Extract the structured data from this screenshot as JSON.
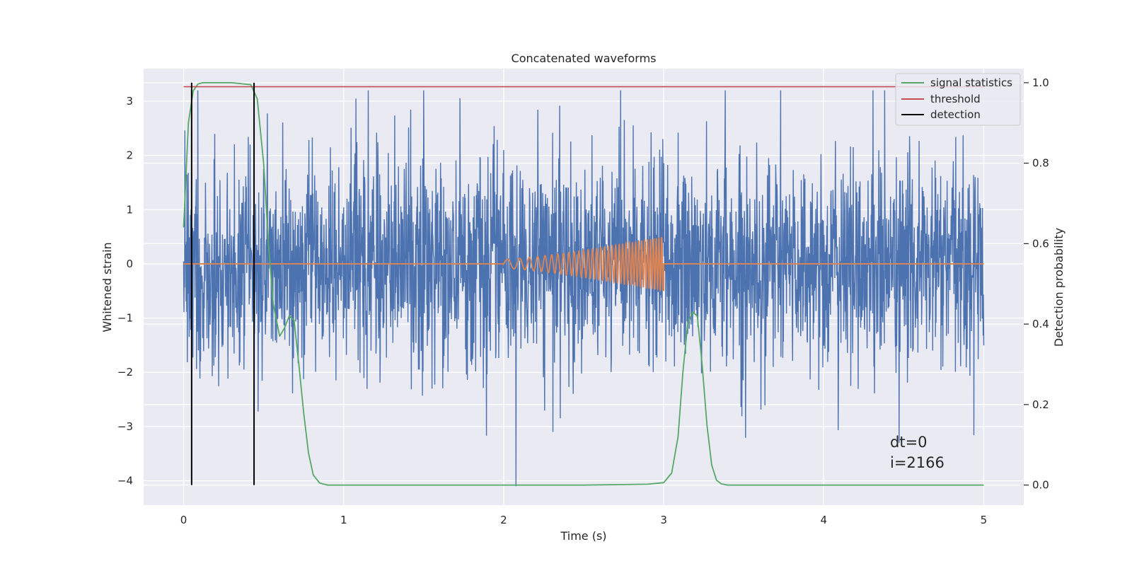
{
  "chart_data": {
    "type": "line",
    "title": "Concatenated waveforms",
    "xlabel": "Time (s)",
    "ylabel": "Whitened strain",
    "ylabel_right": "Detection probability",
    "xlim": [
      -0.25,
      5.25
    ],
    "ylim": [
      -4.45,
      3.6
    ],
    "ylim_right": [
      -0.05,
      1.035
    ],
    "xticks": [
      0,
      1,
      2,
      3,
      4,
      5
    ],
    "xtick_labels": [
      "0",
      "1",
      "2",
      "3",
      "4",
      "5"
    ],
    "yticks": [
      -4,
      -3,
      -2,
      -1,
      0,
      1,
      2,
      3
    ],
    "ytick_labels": [
      "−4",
      "−3",
      "−2",
      "−1",
      "0",
      "1",
      "2",
      "3"
    ],
    "yticks_right": [
      0.0,
      0.2,
      0.4,
      0.6,
      0.8,
      1.0
    ],
    "ytick_labels_right": [
      "0.0",
      "0.2",
      "0.4",
      "0.6",
      "0.8",
      "1.0"
    ],
    "grid": true,
    "legend_position": "top-right",
    "legend": [
      {
        "label": "signal statistics",
        "color": "#55a868"
      },
      {
        "label": "threshold",
        "color": "#c44e52"
      },
      {
        "label": "detection",
        "color": "#000000"
      }
    ],
    "series": [
      {
        "kind": "whitened-noise",
        "axis": "left",
        "color": "#4c72b0",
        "x_range": [
          0,
          5
        ],
        "approx_range": [
          -4.1,
          3.2
        ]
      },
      {
        "kind": "chirp-template",
        "axis": "left",
        "color": "#dd8452",
        "x": [
          0,
          2,
          3,
          3.0,
          5
        ],
        "amplitude_end": 0.5,
        "frequency_start_hz": 10,
        "frequency_end_hz": 60
      },
      {
        "name": "signal statistics",
        "axis": "right",
        "color": "#55a868",
        "x": [
          0.0,
          0.03,
          0.06,
          0.09,
          0.12,
          0.2,
          0.3,
          0.42,
          0.46,
          0.5,
          0.53,
          0.56,
          0.6,
          0.63,
          0.66,
          0.69,
          0.72,
          0.75,
          0.78,
          0.81,
          0.85,
          0.9,
          1.5,
          2.0,
          2.5,
          2.9,
          3.0,
          3.05,
          3.09,
          3.12,
          3.15,
          3.18,
          3.21,
          3.24,
          3.27,
          3.3,
          3.33,
          3.36,
          3.4,
          3.5,
          5.0
        ],
        "y": [
          0.64,
          0.9,
          0.98,
          0.997,
          1.0,
          1.0,
          1.0,
          0.995,
          0.96,
          0.8,
          0.6,
          0.45,
          0.37,
          0.39,
          0.42,
          0.41,
          0.3,
          0.18,
          0.08,
          0.025,
          0.005,
          0.0,
          0.0,
          0.0,
          0.0,
          0.002,
          0.006,
          0.03,
          0.12,
          0.28,
          0.4,
          0.43,
          0.42,
          0.3,
          0.15,
          0.05,
          0.012,
          0.003,
          0.0,
          0.0,
          0.0
        ]
      },
      {
        "name": "threshold",
        "axis": "right",
        "color": "#c44e52",
        "x": [
          0,
          5
        ],
        "y": [
          0.99,
          0.99
        ]
      },
      {
        "name": "detection",
        "axis": "right",
        "color": "#000000",
        "x": [
          0.05,
          0.44
        ],
        "y_range": [
          0,
          1.0
        ]
      }
    ],
    "annotation": [
      "dt=0",
      "i=2166"
    ]
  }
}
